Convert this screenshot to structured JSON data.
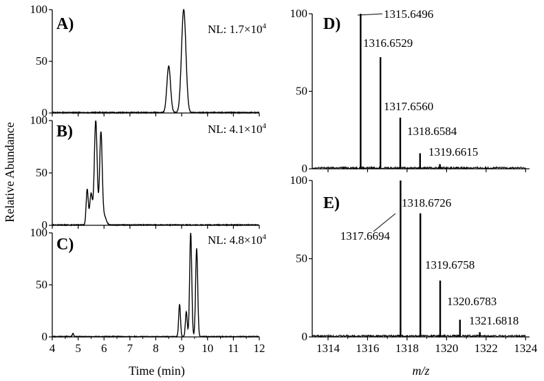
{
  "chart_data": [
    {
      "id": "A",
      "type": "line",
      "panel_label": "A)",
      "note": "NL: 1.7×10",
      "note_exp": "4",
      "x_ticks": [
        "4",
        "5",
        "6",
        "7",
        "8",
        "9",
        "10",
        "11",
        "12"
      ],
      "y_ticks": [
        "0",
        "50",
        "100"
      ],
      "xlim": [
        4,
        12
      ],
      "ylim": [
        0,
        100
      ],
      "peaks": [
        [
          8.5,
          45,
          0.07
        ],
        [
          9.08,
          100,
          0.085
        ]
      ],
      "noise": 0.8
    },
    {
      "id": "B",
      "type": "line",
      "panel_label": "B)",
      "note": "NL: 4.1×10",
      "note_exp": "4",
      "x_ticks": [
        "4",
        "5",
        "6",
        "7",
        "8",
        "9",
        "10",
        "11",
        "12"
      ],
      "y_ticks": [
        "0",
        "50",
        "100"
      ],
      "xlim": [
        4,
        12
      ],
      "ylim": [
        0,
        100
      ],
      "peaks": [
        [
          5.35,
          34,
          0.04
        ],
        [
          5.5,
          30,
          0.05
        ],
        [
          5.68,
          100,
          0.055
        ],
        [
          5.88,
          88,
          0.05
        ],
        [
          6.02,
          8,
          0.07
        ]
      ],
      "noise": 0.7
    },
    {
      "id": "C",
      "type": "line",
      "panel_label": "C)",
      "note": "NL: 4.8×10",
      "note_exp": "4",
      "x_ticks": [
        "4",
        "5",
        "6",
        "7",
        "8",
        "9",
        "10",
        "11",
        "12"
      ],
      "y_ticks": [
        "0",
        "50",
        "100"
      ],
      "xlim": [
        4,
        12
      ],
      "ylim": [
        0,
        100
      ],
      "peaks": [
        [
          4.8,
          3,
          0.03
        ],
        [
          8.92,
          31,
          0.035
        ],
        [
          9.18,
          24,
          0.035
        ],
        [
          9.35,
          100,
          0.04
        ],
        [
          9.58,
          85,
          0.04
        ]
      ],
      "noise": 0.6
    },
    {
      "id": "D",
      "type": "bar",
      "panel_label": "D)",
      "x_ticks": [
        "1314",
        "1316",
        "1318",
        "1320",
        "1322",
        "1324"
      ],
      "y_ticks": [
        "0",
        "50",
        "100"
      ],
      "xlim": [
        1313.2,
        1324.2
      ],
      "ylim": [
        0,
        100
      ],
      "x": [
        1315.6496,
        1316.6529,
        1317.656,
        1318.6584,
        1319.6615
      ],
      "values": [
        100,
        72,
        33,
        10,
        3
      ],
      "labels": [
        "1315.6496",
        "1316.6529",
        "1317.6560",
        "1318.6584",
        "1319.6615"
      ]
    },
    {
      "id": "E",
      "type": "bar",
      "panel_label": "E)",
      "x_ticks": [
        "1314",
        "1316",
        "1318",
        "1320",
        "1322",
        "1324"
      ],
      "y_ticks": [
        "0",
        "50",
        "100"
      ],
      "xlim": [
        1313.2,
        1324.2
      ],
      "ylim": [
        0,
        100
      ],
      "x": [
        1317.6694,
        1318.6726,
        1319.6758,
        1320.6783,
        1321.6818
      ],
      "values": [
        100,
        79,
        36,
        11,
        3
      ],
      "labels": [
        "1317.6694",
        "1318.6726",
        "1319.6758",
        "1320.6783",
        "1321.6818"
      ]
    }
  ],
  "axes": {
    "ylabel": "Relative Abundance",
    "xlabel_left": "Time (min)",
    "xlabel_right": "m/z"
  }
}
